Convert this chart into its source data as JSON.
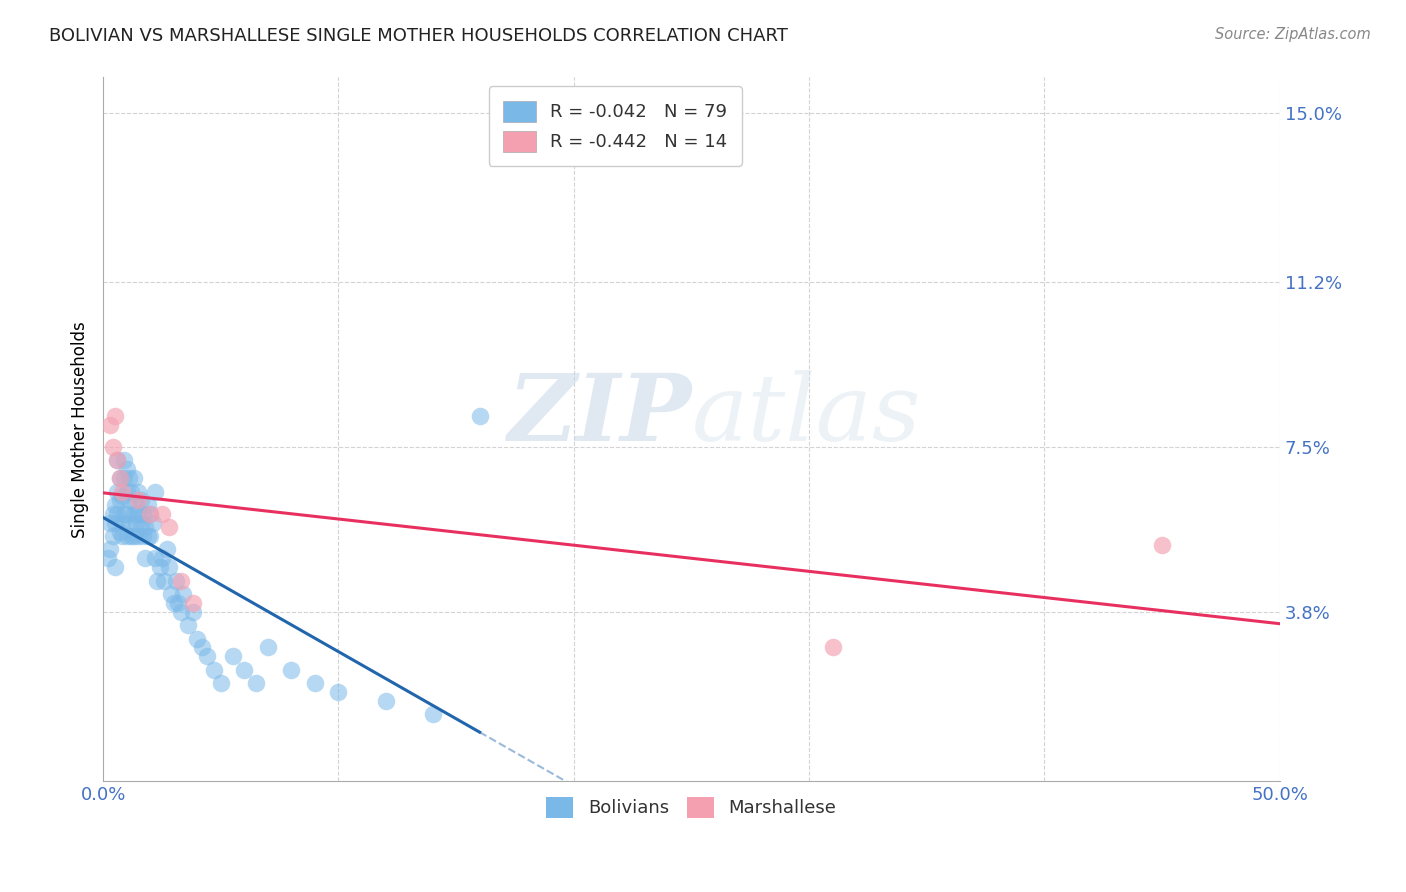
{
  "title": "BOLIVIAN VS MARSHALLESE SINGLE MOTHER HOUSEHOLDS CORRELATION CHART",
  "source": "Source: ZipAtlas.com",
  "ylabel": "Single Mother Households",
  "xlim": [
    0.0,
    0.5
  ],
  "ylim": [
    0.0,
    0.158
  ],
  "yticks": [
    0.038,
    0.075,
    0.112,
    0.15
  ],
  "ytick_labels": [
    "3.8%",
    "7.5%",
    "11.2%",
    "15.0%"
  ],
  "xticks": [
    0.0,
    0.1,
    0.2,
    0.3,
    0.4,
    0.5
  ],
  "xtick_labels": [
    "0.0%",
    "",
    "",
    "",
    "",
    "50.0%"
  ],
  "bolivians_color": "#7ab8e8",
  "marshallese_color": "#f4a0b0",
  "bolivians_line_color": "#2166ac",
  "marshallese_line_color": "#e83060",
  "bolivian_R": -0.042,
  "bolivian_N": 79,
  "marshallese_R": -0.442,
  "marshallese_N": 14,
  "bolivians_x": [
    0.002,
    0.003,
    0.003,
    0.004,
    0.004,
    0.005,
    0.005,
    0.005,
    0.006,
    0.006,
    0.006,
    0.007,
    0.007,
    0.007,
    0.008,
    0.008,
    0.008,
    0.009,
    0.009,
    0.009,
    0.01,
    0.01,
    0.01,
    0.01,
    0.011,
    0.011,
    0.011,
    0.012,
    0.012,
    0.013,
    0.013,
    0.013,
    0.014,
    0.014,
    0.015,
    0.015,
    0.015,
    0.016,
    0.016,
    0.017,
    0.017,
    0.018,
    0.018,
    0.019,
    0.019,
    0.02,
    0.02,
    0.021,
    0.022,
    0.022,
    0.023,
    0.024,
    0.025,
    0.026,
    0.027,
    0.028,
    0.029,
    0.03,
    0.031,
    0.032,
    0.033,
    0.034,
    0.036,
    0.038,
    0.04,
    0.042,
    0.044,
    0.047,
    0.05,
    0.055,
    0.06,
    0.065,
    0.07,
    0.08,
    0.09,
    0.1,
    0.12,
    0.14,
    0.16
  ],
  "bolivians_y": [
    0.05,
    0.058,
    0.052,
    0.06,
    0.055,
    0.062,
    0.048,
    0.058,
    0.065,
    0.06,
    0.072,
    0.056,
    0.063,
    0.068,
    0.058,
    0.064,
    0.055,
    0.06,
    0.068,
    0.072,
    0.065,
    0.06,
    0.055,
    0.07,
    0.063,
    0.058,
    0.068,
    0.055,
    0.065,
    0.06,
    0.055,
    0.068,
    0.062,
    0.058,
    0.06,
    0.065,
    0.055,
    0.058,
    0.063,
    0.055,
    0.06,
    0.05,
    0.057,
    0.055,
    0.062,
    0.055,
    0.06,
    0.058,
    0.05,
    0.065,
    0.045,
    0.048,
    0.05,
    0.045,
    0.052,
    0.048,
    0.042,
    0.04,
    0.045,
    0.04,
    0.038,
    0.042,
    0.035,
    0.038,
    0.032,
    0.03,
    0.028,
    0.025,
    0.022,
    0.028,
    0.025,
    0.022,
    0.03,
    0.025,
    0.022,
    0.02,
    0.018,
    0.015,
    0.082
  ],
  "marshallese_x": [
    0.003,
    0.004,
    0.005,
    0.006,
    0.007,
    0.008,
    0.015,
    0.02,
    0.025,
    0.028,
    0.033,
    0.038,
    0.31,
    0.45
  ],
  "marshallese_y": [
    0.08,
    0.075,
    0.082,
    0.072,
    0.068,
    0.065,
    0.063,
    0.06,
    0.06,
    0.057,
    0.045,
    0.04,
    0.03,
    0.053
  ],
  "watermark_zip": "ZIP",
  "watermark_atlas": "atlas",
  "background_color": "#ffffff",
  "grid_color": "#c8c8c8",
  "bolivian_line_intercept": 0.062,
  "bolivian_line_slope": -0.06,
  "marshallese_line_intercept": 0.075,
  "marshallese_line_slope": -0.095
}
